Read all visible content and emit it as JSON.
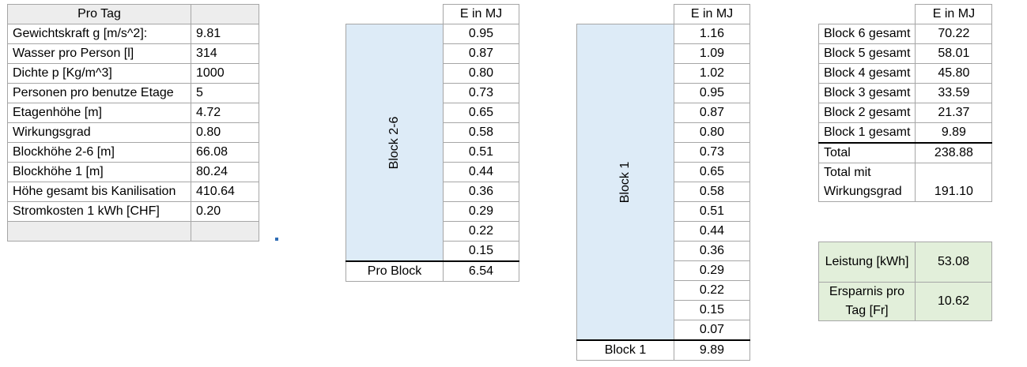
{
  "pro_tag": {
    "header": "Pro Tag",
    "rows": [
      {
        "label": "Gewichtskraft g [m/s^2]:",
        "value": "9.81"
      },
      {
        "label": "Wasser pro Person [l]",
        "value": "314"
      },
      {
        "label": "Dichte p [Kg/m^3]",
        "value": "1000"
      },
      {
        "label": "Personen pro benutze Etage",
        "value": "5"
      },
      {
        "label": "Etagenhöhe [m]",
        "value": "4.72"
      },
      {
        "label": "Wirkungsgrad",
        "value": "0.80"
      },
      {
        "label": "Blockhöhe 2-6 [m]",
        "value": "66.08"
      },
      {
        "label": "Blockhöhe 1 [m]",
        "value": "80.24"
      },
      {
        "label": "Höhe gesamt bis Kanilisation",
        "value": "410.64"
      },
      {
        "label": "Stromkosten 1 kWh [CHF]",
        "value": "0.20"
      }
    ]
  },
  "block_2_6": {
    "header": "E in MJ",
    "label": "Block 2-6",
    "values": [
      "0.95",
      "0.87",
      "0.80",
      "0.73",
      "0.65",
      "0.58",
      "0.51",
      "0.44",
      "0.36",
      "0.29",
      "0.22",
      "0.15"
    ],
    "total_label": "Pro Block",
    "total_value": "6.54"
  },
  "block_1": {
    "header": "E in MJ",
    "label": "Block 1",
    "values": [
      "1.16",
      "1.09",
      "1.02",
      "0.95",
      "0.87",
      "0.80",
      "0.73",
      "0.65",
      "0.58",
      "0.51",
      "0.44",
      "0.36",
      "0.29",
      "0.22",
      "0.15",
      "0.07"
    ],
    "total_label": "Block 1",
    "total_value": "9.89"
  },
  "totals": {
    "header": "E in MJ",
    "rows": [
      {
        "label": "Block 6 gesamt",
        "value": "70.22"
      },
      {
        "label": "Block 5 gesamt",
        "value": "58.01"
      },
      {
        "label": "Block 4 gesamt",
        "value": "45.80"
      },
      {
        "label": "Block 3 gesamt",
        "value": "33.59"
      },
      {
        "label": "Block 2 gesamt",
        "value": "21.37"
      },
      {
        "label": "Block 1 gesamt",
        "value": "9.89"
      }
    ],
    "total_label": "Total",
    "total_value": "238.88",
    "wirkung_label_1": "Total mit",
    "wirkung_label_2": "Wirkungsgrad",
    "wirkung_value": "191.10"
  },
  "summary": {
    "leistung_label": "Leistung [kWh]",
    "leistung_value": "53.08",
    "ersparnis_label": "Ersparnis pro Tag [Fr]",
    "ersparnis_value": "10.62"
  },
  "colors": {
    "block_fill": "#ddebf7",
    "summary_fill": "#e2efda",
    "header_fill": "#ededed",
    "grid": "#a6a6a6"
  }
}
